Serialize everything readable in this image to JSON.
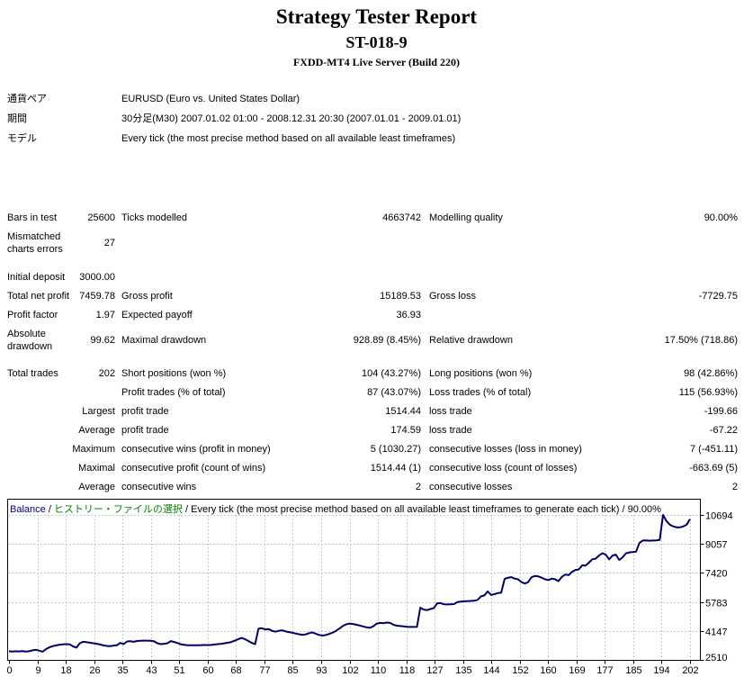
{
  "header": {
    "title": "Strategy Tester Report",
    "subtitle": "ST-018-9",
    "server": "FXDD-MT4 Live Server (Build 220)"
  },
  "info": {
    "rows": [
      {
        "label": "通貨ペア",
        "value": "EURUSD (Euro vs. United States Dollar)"
      },
      {
        "label": "期間",
        "value": "30分足(M30) 2007.01.02 01:00 - 2008.12.31 20:30 (2007.01.01 - 2009.01.01)"
      },
      {
        "label": "モデル",
        "value": "Every tick (the most precise method based on all available least timeframes)"
      }
    ]
  },
  "stats": {
    "rows": [
      {
        "cells": [
          "Bars in test",
          "25600",
          "Ticks modelled",
          "4663742",
          "Modelling quality",
          "90.00%"
        ]
      },
      {
        "cells": [
          "Mismatched charts errors",
          "27",
          "",
          "",
          "",
          ""
        ]
      },
      {
        "cells": [
          "Initial deposit",
          "3000.00",
          "",
          "",
          "",
          ""
        ]
      },
      {
        "cells": [
          "Total net profit",
          "7459.78",
          "Gross profit",
          "15189.53",
          "Gross loss",
          "-7729.75"
        ]
      },
      {
        "cells": [
          "Profit factor",
          "1.97",
          "Expected payoff",
          "36.93",
          "",
          ""
        ]
      },
      {
        "cells": [
          "Absolute drawdown",
          "99.62",
          "Maximal drawdown",
          "928.89 (8.45%)",
          "Relative drawdown",
          "17.50% (718.86)"
        ]
      },
      {
        "cells": [
          "Total trades",
          "202",
          "Short positions (won %)",
          "104 (43.27%)",
          "Long positions (won %)",
          "98 (42.86%)"
        ]
      },
      {
        "cells": [
          "",
          "",
          "Profit trades (% of total)",
          "87 (43.07%)",
          "Loss trades (% of total)",
          "115 (56.93%)"
        ]
      },
      {
        "cells": [
          "",
          "Largest",
          "profit trade",
          "1514.44",
          "loss trade",
          "-199.66"
        ]
      },
      {
        "cells": [
          "",
          "Average",
          "profit trade",
          "174.59",
          "loss trade",
          "-67.22"
        ]
      },
      {
        "cells": [
          "",
          "Maximum",
          "consecutive wins (profit in money)",
          "5 (1030.27)",
          "consecutive losses (loss in money)",
          "7 (-451.11)"
        ]
      },
      {
        "cells": [
          "",
          "Maximal",
          "consecutive profit (count of wins)",
          "1514.44 (1)",
          "consecutive loss (count of losses)",
          "-663.69 (5)"
        ]
      },
      {
        "cells": [
          "",
          "Average",
          "consecutive wins",
          "2",
          "consecutive losses",
          "2"
        ]
      }
    ]
  },
  "chart_data": {
    "type": "line",
    "legend": {
      "balance_label": "Balance",
      "history_label": "ヒストリー・ファイルの選択",
      "method_label": "Every tick (the most precise method based on all available least timeframes to generate each tick)",
      "quality_label": "90.00%",
      "separator": " / "
    },
    "xlabel": "",
    "ylabel": "",
    "xlim": [
      0,
      202
    ],
    "ylim": [
      2510,
      10694
    ],
    "x_ticks": [
      0,
      9,
      18,
      26,
      35,
      43,
      51,
      60,
      68,
      77,
      85,
      93,
      102,
      110,
      118,
      127,
      135,
      144,
      152,
      160,
      169,
      177,
      185,
      194,
      202
    ],
    "y_ticks": [
      10694,
      9057,
      7420,
      5783,
      4147,
      2510
    ],
    "grid": true,
    "legend_position": "top-left",
    "colors": {
      "line": "#000066",
      "grid": "#c8c8c8",
      "border": "#000000",
      "balance_text": "#000080",
      "history_text": "#008000"
    },
    "series": [
      {
        "name": "Balance",
        "points": [
          [
            0,
            3000
          ],
          [
            1,
            2980
          ],
          [
            2,
            3000
          ],
          [
            3,
            2990
          ],
          [
            4,
            3010
          ],
          [
            5,
            2985
          ],
          [
            6,
            3000
          ],
          [
            7,
            3050
          ],
          [
            8,
            3080
          ],
          [
            9,
            3030
          ],
          [
            10,
            2975
          ],
          [
            11,
            3120
          ],
          [
            12,
            3220
          ],
          [
            13,
            3290
          ],
          [
            14,
            3330
          ],
          [
            15,
            3370
          ],
          [
            16,
            3390
          ],
          [
            17,
            3400
          ],
          [
            18,
            3390
          ],
          [
            19,
            3270
          ],
          [
            20,
            3200
          ],
          [
            21,
            3450
          ],
          [
            22,
            3530
          ],
          [
            23,
            3510
          ],
          [
            24,
            3480
          ],
          [
            25,
            3450
          ],
          [
            26,
            3420
          ],
          [
            27,
            3380
          ],
          [
            28,
            3330
          ],
          [
            29,
            3300
          ],
          [
            30,
            3290
          ],
          [
            31,
            3320
          ],
          [
            32,
            3340
          ],
          [
            33,
            3470
          ],
          [
            34,
            3400
          ],
          [
            35,
            3550
          ],
          [
            36,
            3560
          ],
          [
            37,
            3530
          ],
          [
            38,
            3580
          ],
          [
            39,
            3590
          ],
          [
            40,
            3600
          ],
          [
            41,
            3600
          ],
          [
            42,
            3590
          ],
          [
            43,
            3560
          ],
          [
            44,
            3450
          ],
          [
            45,
            3400
          ],
          [
            46,
            3420
          ],
          [
            47,
            3450
          ],
          [
            48,
            3570
          ],
          [
            49,
            3520
          ],
          [
            50,
            3460
          ],
          [
            51,
            3390
          ],
          [
            52,
            3360
          ],
          [
            53,
            3340
          ],
          [
            54,
            3340
          ],
          [
            55,
            3335
          ],
          [
            56,
            3340
          ],
          [
            57,
            3345
          ],
          [
            58,
            3350
          ],
          [
            59,
            3350
          ],
          [
            60,
            3355
          ],
          [
            61,
            3380
          ],
          [
            62,
            3400
          ],
          [
            63,
            3420
          ],
          [
            64,
            3450
          ],
          [
            65,
            3480
          ],
          [
            66,
            3520
          ],
          [
            67,
            3600
          ],
          [
            68,
            3680
          ],
          [
            69,
            3750
          ],
          [
            70,
            3680
          ],
          [
            71,
            3580
          ],
          [
            72,
            3470
          ],
          [
            73,
            3400
          ],
          [
            74,
            4270
          ],
          [
            75,
            4300
          ],
          [
            76,
            4230
          ],
          [
            77,
            4250
          ],
          [
            78,
            4150
          ],
          [
            79,
            4100
          ],
          [
            80,
            4150
          ],
          [
            81,
            4180
          ],
          [
            82,
            4120
          ],
          [
            83,
            4080
          ],
          [
            84,
            4050
          ],
          [
            85,
            4000
          ],
          [
            86,
            3960
          ],
          [
            87,
            3930
          ],
          [
            88,
            3950
          ],
          [
            89,
            4020
          ],
          [
            90,
            4060
          ],
          [
            91,
            3990
          ],
          [
            92,
            3920
          ],
          [
            93,
            3880
          ],
          [
            94,
            3920
          ],
          [
            95,
            3980
          ],
          [
            96,
            4050
          ],
          [
            97,
            4150
          ],
          [
            98,
            4280
          ],
          [
            99,
            4420
          ],
          [
            100,
            4520
          ],
          [
            101,
            4560
          ],
          [
            102,
            4540
          ],
          [
            103,
            4500
          ],
          [
            104,
            4450
          ],
          [
            105,
            4400
          ],
          [
            106,
            4350
          ],
          [
            107,
            4320
          ],
          [
            108,
            4400
          ],
          [
            109,
            4550
          ],
          [
            110,
            4600
          ],
          [
            111,
            4580
          ],
          [
            112,
            4620
          ],
          [
            113,
            4600
          ],
          [
            114,
            4500
          ],
          [
            115,
            4440
          ],
          [
            116,
            4420
          ],
          [
            117,
            4400
          ],
          [
            118,
            4380
          ],
          [
            119,
            4370
          ],
          [
            120,
            4370
          ],
          [
            121,
            4380
          ],
          [
            122,
            5460
          ],
          [
            123,
            5350
          ],
          [
            124,
            5320
          ],
          [
            125,
            5380
          ],
          [
            126,
            5440
          ],
          [
            127,
            5700
          ],
          [
            128,
            5720
          ],
          [
            129,
            5650
          ],
          [
            130,
            5640
          ],
          [
            131,
            5650
          ],
          [
            132,
            5660
          ],
          [
            133,
            5780
          ],
          [
            134,
            5800
          ],
          [
            135,
            5820
          ],
          [
            136,
            5830
          ],
          [
            137,
            5840
          ],
          [
            138,
            5850
          ],
          [
            139,
            5900
          ],
          [
            140,
            6100
          ],
          [
            141,
            6150
          ],
          [
            142,
            6380
          ],
          [
            143,
            6180
          ],
          [
            144,
            6220
          ],
          [
            145,
            6280
          ],
          [
            146,
            6300
          ],
          [
            147,
            7080
          ],
          [
            148,
            7150
          ],
          [
            149,
            7180
          ],
          [
            150,
            7100
          ],
          [
            151,
            7060
          ],
          [
            152,
            6900
          ],
          [
            153,
            6820
          ],
          [
            154,
            6900
          ],
          [
            155,
            7180
          ],
          [
            156,
            7250
          ],
          [
            157,
            7220
          ],
          [
            158,
            7150
          ],
          [
            159,
            7060
          ],
          [
            160,
            7020
          ],
          [
            161,
            7100
          ],
          [
            162,
            7060
          ],
          [
            163,
            6960
          ],
          [
            164,
            7200
          ],
          [
            165,
            7330
          ],
          [
            166,
            7300
          ],
          [
            167,
            7480
          ],
          [
            168,
            7590
          ],
          [
            169,
            7620
          ],
          [
            170,
            7845
          ],
          [
            171,
            7830
          ],
          [
            172,
            8000
          ],
          [
            173,
            8190
          ],
          [
            174,
            8230
          ],
          [
            175,
            8400
          ],
          [
            176,
            8530
          ],
          [
            177,
            8450
          ],
          [
            178,
            8190
          ],
          [
            179,
            8400
          ],
          [
            180,
            8450
          ],
          [
            181,
            8150
          ],
          [
            182,
            8300
          ],
          [
            183,
            8530
          ],
          [
            184,
            8580
          ],
          [
            185,
            8600
          ],
          [
            186,
            8620
          ],
          [
            187,
            9120
          ],
          [
            188,
            9250
          ],
          [
            189,
            9260
          ],
          [
            190,
            9240
          ],
          [
            191,
            9250
          ],
          [
            192,
            9260
          ],
          [
            193,
            9280
          ],
          [
            194,
            10694
          ],
          [
            195,
            10350
          ],
          [
            196,
            10150
          ],
          [
            197,
            10050
          ],
          [
            198,
            10000
          ],
          [
            199,
            9990
          ],
          [
            200,
            10050
          ],
          [
            201,
            10150
          ],
          [
            202,
            10460
          ]
        ]
      }
    ]
  }
}
